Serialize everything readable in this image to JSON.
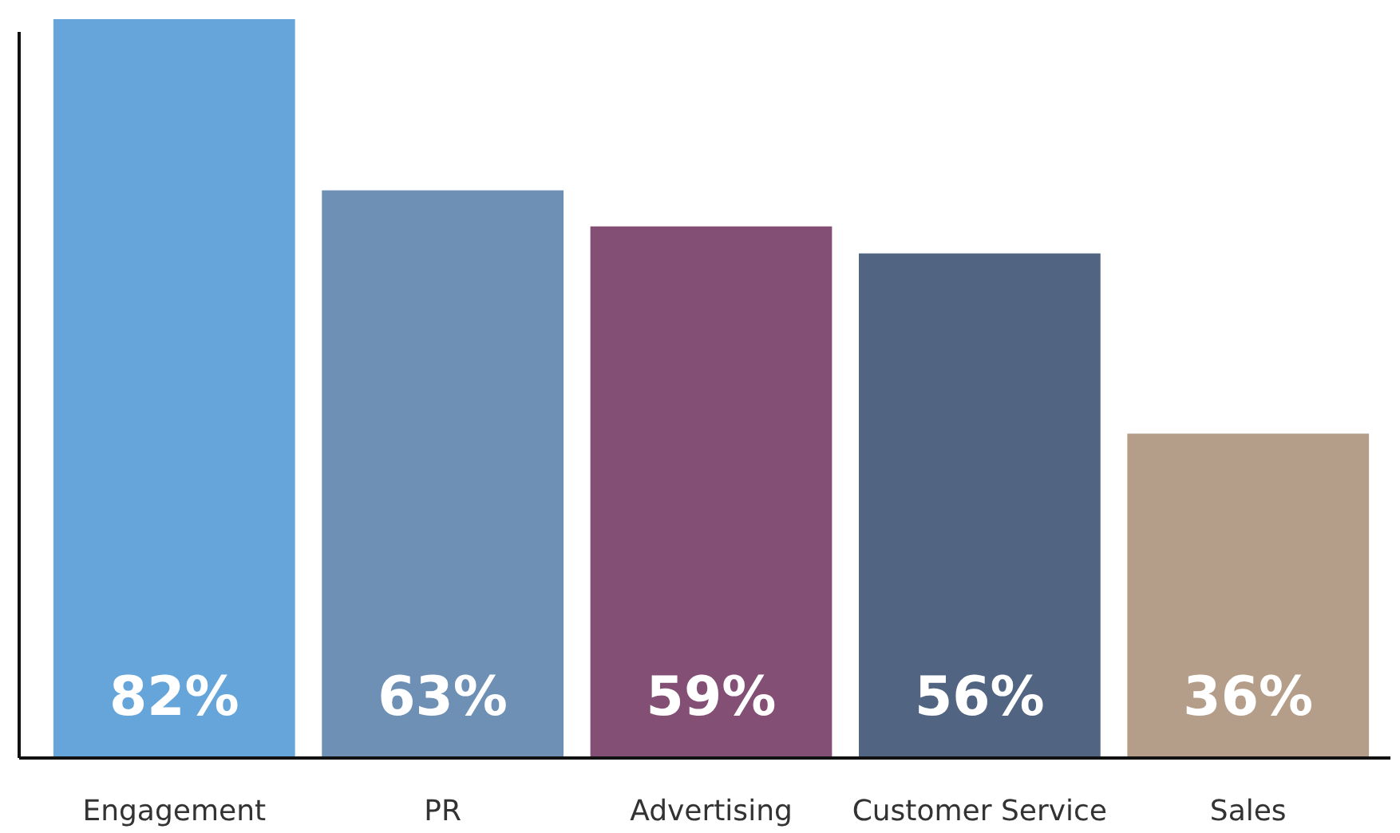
{
  "chart_data": {
    "type": "bar",
    "categories": [
      "Engagement",
      "PR",
      "Advertising",
      "Customer Service",
      "Sales"
    ],
    "values": [
      82,
      63,
      59,
      56,
      36
    ],
    "colors": [
      "#66a5da",
      "#6e90b5",
      "#844f74",
      "#516582",
      "#b59e89"
    ],
    "value_labels": [
      "82%",
      "63%",
      "59%",
      "56%",
      "36%"
    ],
    "relative": false
  }
}
